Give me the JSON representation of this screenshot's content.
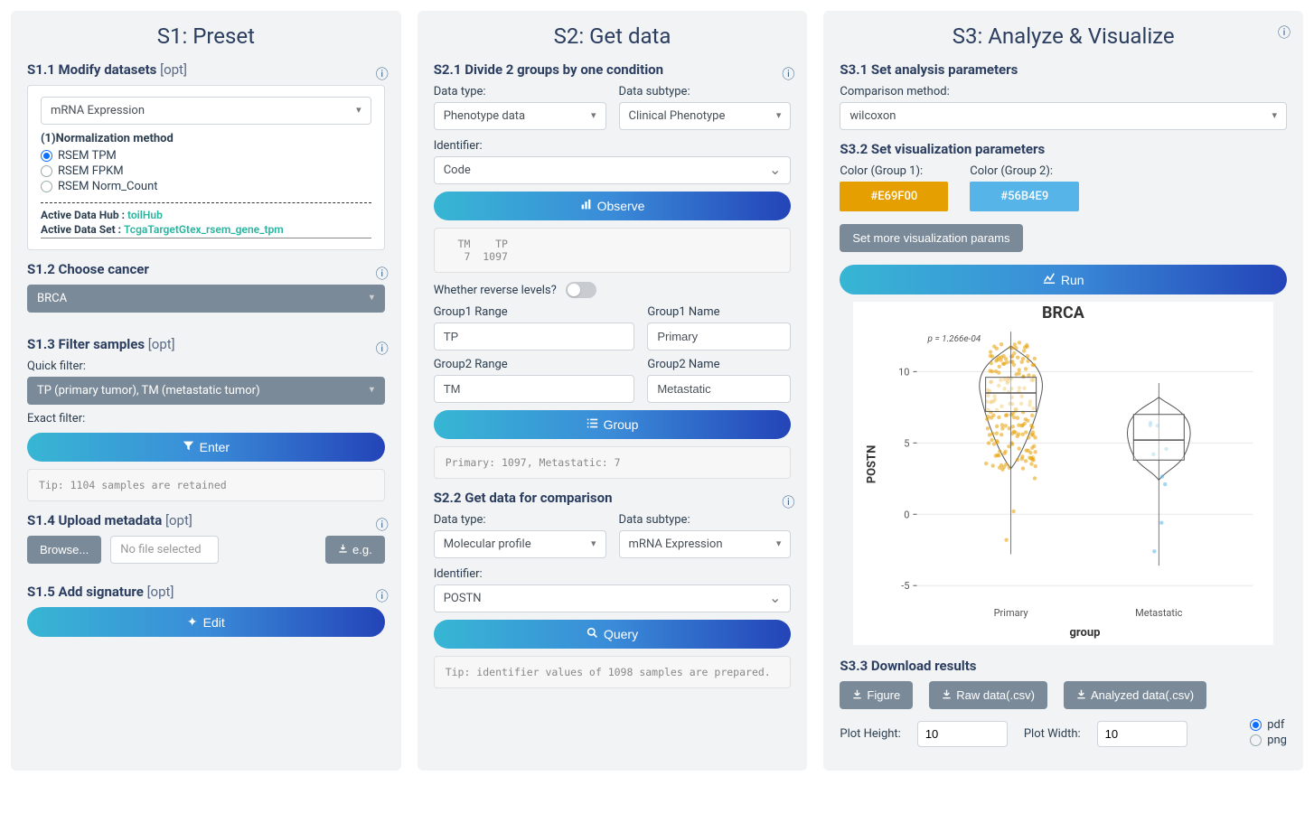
{
  "s1": {
    "title": "S1: Preset",
    "sec11": {
      "title": "S1.1 Modify datasets",
      "opt": "[opt]",
      "dataset_select": "mRNA Expression",
      "norm_label": "(1)Normalization method",
      "norm_options": [
        "RSEM TPM",
        "RSEM FPKM",
        "RSEM Norm_Count"
      ],
      "norm_selected": 0,
      "hub_label": "Active Data Hub :",
      "hub_value": "toilHub",
      "set_label": "Active Data Set :",
      "set_value": "TcgaTargetGtex_rsem_gene_tpm"
    },
    "sec12": {
      "title": "S1.2 Choose cancer",
      "cancer_select": "BRCA"
    },
    "sec13": {
      "title": "S1.3 Filter samples",
      "opt": "[opt]",
      "quick_label": "Quick filter:",
      "quick_select": "TP (primary tumor), TM (metastatic tumor)",
      "exact_label": "Exact filter:",
      "enter_btn": "Enter",
      "tip": "Tip: 1104 samples are retained"
    },
    "sec14": {
      "title": "S1.4 Upload metadata",
      "opt": "[opt]",
      "browse": "Browse...",
      "file_placeholder": "No file selected",
      "eg": "e.g."
    },
    "sec15": {
      "title": "S1.5 Add signature",
      "opt": "[opt]",
      "edit_btn": "Edit"
    }
  },
  "s2": {
    "title": "S2: Get data",
    "sec21": {
      "title": "S2.1 Divide 2 groups by one condition",
      "data_type_label": "Data type:",
      "data_type": "Phenotype data",
      "data_subtype_label": "Data subtype:",
      "data_subtype": "Clinical Phenotype",
      "identifier_label": "Identifier:",
      "identifier": "Code",
      "observe_btn": "Observe",
      "observe_output": "  TM    TP\n   7  1097",
      "reverse_label": "Whether reverse levels?",
      "g1r_label": "Group1 Range",
      "g1r": "TP",
      "g1n_label": "Group1 Name",
      "g1n": "Primary",
      "g2r_label": "Group2 Range",
      "g2r": "TM",
      "g2n_label": "Group2 Name",
      "g2n": "Metastatic",
      "group_btn": "Group",
      "group_output": "Primary: 1097, Metastatic: 7"
    },
    "sec22": {
      "title": "S2.2 Get data for comparison",
      "data_type_label": "Data type:",
      "data_type": "Molecular profile",
      "data_subtype_label": "Data subtype:",
      "data_subtype": "mRNA Expression",
      "identifier_label": "Identifier:",
      "identifier": "POSTN",
      "query_btn": "Query",
      "query_output": "Tip: identifier values of 1098 samples are prepared."
    }
  },
  "s3": {
    "title": "S3: Analyze & Visualize",
    "sec31": {
      "title": "S3.1 Set analysis parameters",
      "method_label": "Comparison method:",
      "method": "wilcoxon"
    },
    "sec32": {
      "title": "S3.2 Set visualization parameters",
      "c1_label": "Color (Group 1):",
      "c1": "#E69F00",
      "c2_label": "Color (Group 2):",
      "c2": "#56B4E9",
      "more_btn": "Set more visualization params",
      "run_btn": "Run"
    },
    "plot": {
      "title": "BRCA",
      "pvalue_text": "p = 1.266e-04",
      "ylabel": "POSTN",
      "xlabel": "group",
      "xticks": [
        "Primary",
        "Metastatic"
      ],
      "yticks": [
        -5,
        0,
        5,
        10
      ],
      "ylim": [
        -6,
        13
      ],
      "group1_color": "#E69F00",
      "group2_color": "#56B4E9",
      "background": "#ffffff",
      "grid_color": "#e8e8e8",
      "group1": {
        "median": 8.5,
        "q1": 7.2,
        "q3": 9.6,
        "whisker_lo": 3.2,
        "whisker_hi": 11.8
      },
      "group2": {
        "median": 5.2,
        "q1": 3.8,
        "q3": 7.0,
        "whisker_lo": 2.4,
        "whisker_hi": 8.2
      }
    },
    "sec33": {
      "title": "S3.3 Download results",
      "figure_btn": "Figure",
      "raw_btn": "Raw data(.csv)",
      "analyzed_btn": "Analyzed data(.csv)",
      "height_label": "Plot Height:",
      "height": "10",
      "width_label": "Plot Width:",
      "width": "10",
      "fmt_options": [
        "pdf",
        "png"
      ],
      "fmt_selected": 0
    }
  }
}
